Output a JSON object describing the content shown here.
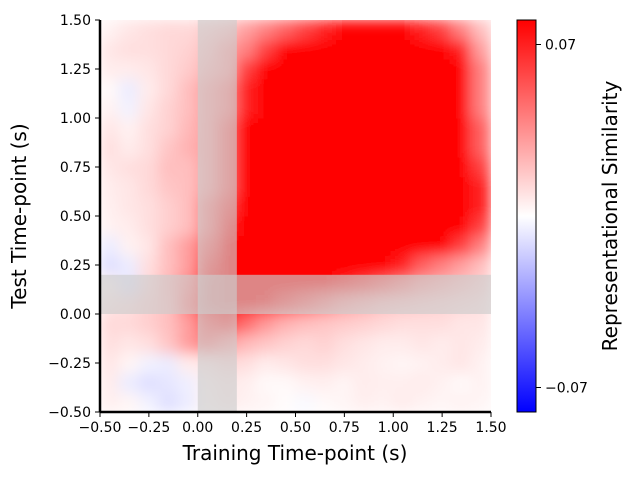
{
  "chart_data": {
    "type": "heatmap",
    "xlabel": "Training Time-point (s)",
    "ylabel": "Test Time-point (s)",
    "xlim": [
      -0.5,
      1.5
    ],
    "ylim": [
      -0.5,
      1.5
    ],
    "x_ticks": [
      "−0.50",
      "−0.25",
      "0.00",
      "0.25",
      "0.50",
      "0.75",
      "1.00",
      "1.25",
      "1.50"
    ],
    "y_ticks": [
      "−0.50",
      "−0.25",
      "0.00",
      "0.25",
      "0.50",
      "0.75",
      "1.00",
      "1.25",
      "1.50"
    ],
    "colorbar": {
      "label": "Representational Similarity",
      "ticks": [
        "0.07",
        "−0.07"
      ],
      "tick_values": [
        0.07,
        -0.07
      ],
      "range": [
        -0.08,
        0.08
      ],
      "colormap": [
        "#0000ff",
        "#ffffff",
        "#ff0000"
      ]
    },
    "colormap": "bwr",
    "shaded_band_color": "#cccccc",
    "shaded_bands": [
      {
        "axis": "x",
        "from": 0.0,
        "to": 0.2
      },
      {
        "axis": "y",
        "from": 0.0,
        "to": 0.2
      }
    ],
    "matrix_x_start": -0.5,
    "matrix_y_start": -0.5,
    "matrix_step": 0.1,
    "matrix": [
      [
        0.005,
        0.003,
        -0.004,
        -0.01,
        -0.006,
        0.003,
        0.006,
        0.004,
        0.003,
        0.001,
        -0.002,
        0.002,
        0.003,
        0.005,
        0.004,
        0.006,
        0.004,
        0.003,
        0.004,
        0.003
      ],
      [
        0.006,
        -0.006,
        -0.01,
        -0.008,
        -0.005,
        0.004,
        0.007,
        0.005,
        0.002,
        0.002,
        0.004,
        0.005,
        0.003,
        0.006,
        0.005,
        0.005,
        0.006,
        0.004,
        0.002,
        0.004
      ],
      [
        0.008,
        0.003,
        -0.004,
        -0.006,
        0.006,
        0.008,
        0.012,
        0.01,
        0.006,
        0.008,
        0.01,
        0.01,
        0.008,
        0.006,
        0.004,
        0.003,
        0.004,
        0.006,
        0.008,
        0.004
      ],
      [
        0.01,
        0.008,
        0.01,
        0.018,
        0.03,
        0.04,
        0.03,
        0.022,
        0.018,
        0.014,
        0.012,
        0.014,
        0.01,
        0.008,
        0.006,
        0.006,
        0.008,
        0.006,
        0.008,
        0.006
      ],
      [
        0.012,
        0.012,
        0.015,
        0.02,
        0.03,
        0.05,
        0.06,
        0.045,
        0.032,
        0.024,
        0.02,
        0.018,
        0.016,
        0.014,
        0.012,
        0.01,
        0.01,
        0.01,
        0.008,
        0.008
      ],
      [
        0.008,
        0.01,
        0.015,
        0.02,
        0.04,
        0.07,
        0.08,
        0.08,
        0.075,
        0.06,
        0.05,
        0.04,
        0.03,
        0.025,
        0.02,
        0.018,
        0.016,
        0.014,
        0.012,
        0.01
      ],
      [
        0.004,
        -0.008,
        0.012,
        0.022,
        0.035,
        0.07,
        0.09,
        0.09,
        0.09,
        0.09,
        0.09,
        0.08,
        0.07,
        0.06,
        0.05,
        0.04,
        0.03,
        0.025,
        0.02,
        0.015
      ],
      [
        -0.01,
        -0.006,
        0.01,
        0.02,
        0.03,
        0.06,
        0.09,
        0.09,
        0.09,
        0.09,
        0.09,
        0.09,
        0.09,
        0.09,
        0.08,
        0.07,
        0.05,
        0.04,
        0.03,
        0.02
      ],
      [
        -0.006,
        0.004,
        0.008,
        0.02,
        0.03,
        0.05,
        0.08,
        0.09,
        0.09,
        0.09,
        0.09,
        0.09,
        0.09,
        0.09,
        0.09,
        0.09,
        0.09,
        0.08,
        0.06,
        0.04
      ],
      [
        0.004,
        0.006,
        0.01,
        0.015,
        0.02,
        0.04,
        0.07,
        0.09,
        0.09,
        0.09,
        0.09,
        0.09,
        0.09,
        0.09,
        0.09,
        0.09,
        0.09,
        0.09,
        0.08,
        0.06
      ],
      [
        0.005,
        0.008,
        0.01,
        0.015,
        0.02,
        0.04,
        0.06,
        0.09,
        0.09,
        0.09,
        0.09,
        0.09,
        0.09,
        0.09,
        0.09,
        0.09,
        0.09,
        0.09,
        0.09,
        0.07
      ],
      [
        0.006,
        0.008,
        0.012,
        0.018,
        0.02,
        0.03,
        0.05,
        0.08,
        0.09,
        0.09,
        0.09,
        0.09,
        0.09,
        0.09,
        0.09,
        0.09,
        0.09,
        0.09,
        0.09,
        0.07
      ],
      [
        0.008,
        0.01,
        0.012,
        0.02,
        0.02,
        0.03,
        0.05,
        0.08,
        0.09,
        0.09,
        0.09,
        0.09,
        0.09,
        0.09,
        0.09,
        0.09,
        0.09,
        0.09,
        0.09,
        0.06
      ],
      [
        0.01,
        0.006,
        0.01,
        0.018,
        0.024,
        0.03,
        0.05,
        0.08,
        0.09,
        0.09,
        0.09,
        0.09,
        0.09,
        0.09,
        0.09,
        0.09,
        0.09,
        0.09,
        0.09,
        0.05
      ],
      [
        0.008,
        0.004,
        0.01,
        0.014,
        0.022,
        0.03,
        0.05,
        0.08,
        0.09,
        0.09,
        0.09,
        0.09,
        0.09,
        0.09,
        0.09,
        0.09,
        0.09,
        0.09,
        0.09,
        0.05
      ],
      [
        0.004,
        -0.004,
        0.008,
        0.014,
        0.02,
        0.03,
        0.04,
        0.07,
        0.09,
        0.09,
        0.09,
        0.09,
        0.09,
        0.09,
        0.09,
        0.09,
        0.09,
        0.09,
        0.08,
        0.04
      ],
      [
        0.002,
        -0.006,
        0.006,
        0.012,
        0.02,
        0.03,
        0.04,
        0.07,
        0.09,
        0.09,
        0.09,
        0.09,
        0.09,
        0.09,
        0.09,
        0.09,
        0.09,
        0.09,
        0.08,
        0.04
      ],
      [
        0.006,
        0.006,
        0.008,
        0.012,
        0.016,
        0.024,
        0.03,
        0.06,
        0.08,
        0.09,
        0.09,
        0.09,
        0.09,
        0.09,
        0.09,
        0.09,
        0.09,
        0.09,
        0.08,
        0.04
      ],
      [
        0.008,
        0.01,
        0.01,
        0.012,
        0.014,
        0.02,
        0.03,
        0.04,
        0.06,
        0.08,
        0.09,
        0.09,
        0.09,
        0.09,
        0.09,
        0.09,
        0.09,
        0.09,
        0.07,
        0.03
      ],
      [
        0.004,
        0.008,
        0.01,
        0.012,
        0.012,
        0.016,
        0.02,
        0.03,
        0.04,
        0.05,
        0.06,
        0.07,
        0.08,
        0.08,
        0.08,
        0.08,
        0.07,
        0.06,
        0.04,
        0.02
      ]
    ]
  }
}
